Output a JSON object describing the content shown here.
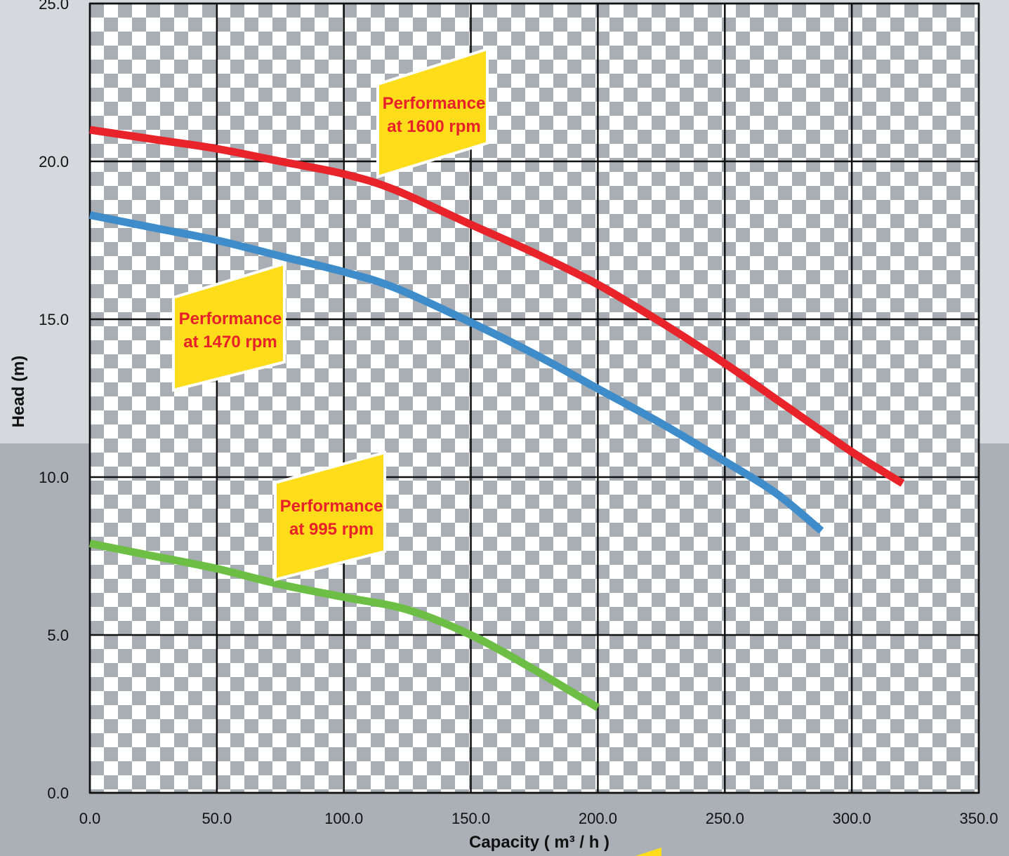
{
  "chart_data": {
    "type": "line",
    "xlabel": "Capacity ( m³ / h )",
    "ylabel": "Head (m)",
    "xlim": [
      0,
      350
    ],
    "ylim": [
      0,
      25
    ],
    "x_ticks": [
      "0.0",
      "50.0",
      "100.0",
      "150.0",
      "200.0",
      "250.0",
      "300.0",
      "350.0"
    ],
    "y_ticks": [
      "0.0",
      "5.0",
      "10.0",
      "15.0",
      "20.0",
      "25.0"
    ],
    "grid": true,
    "series": [
      {
        "color": "#e8232a",
        "x": [
          0,
          25,
          50,
          75,
          100,
          120,
          150,
          175,
          200,
          225,
          250,
          275,
          300,
          320
        ],
        "y": [
          21.0,
          20.7,
          20.4,
          20.0,
          19.6,
          19.1,
          18.0,
          17.1,
          16.1,
          14.9,
          13.6,
          12.2,
          10.8,
          9.8
        ]
      },
      {
        "color": "#3f8ccb",
        "x": [
          0,
          25,
          50,
          75,
          100,
          120,
          150,
          175,
          200,
          225,
          250,
          270,
          288
        ],
        "y": [
          18.3,
          17.9,
          17.5,
          17.0,
          16.5,
          16.0,
          14.9,
          13.9,
          12.8,
          11.7,
          10.5,
          9.5,
          8.3
        ]
      },
      {
        "color": "#6cbe45",
        "x": [
          0,
          25,
          50,
          75,
          100,
          125,
          150,
          175,
          200
        ],
        "y": [
          7.9,
          7.5,
          7.1,
          6.6,
          6.2,
          5.8,
          5.0,
          3.9,
          2.7
        ]
      }
    ],
    "annotations": [
      {
        "line1": "Performance",
        "line2": "at 1600 rpm"
      },
      {
        "line1": "Performance",
        "line2": "at 1470 rpm"
      },
      {
        "line1": "Performance",
        "line2": "at 995 rpm"
      }
    ],
    "colors": {
      "callout_fill": "#ffdd1a",
      "callout_text": "#e8202a",
      "check_dark": "#a9aeb4",
      "check_light": "#ffffff"
    }
  }
}
